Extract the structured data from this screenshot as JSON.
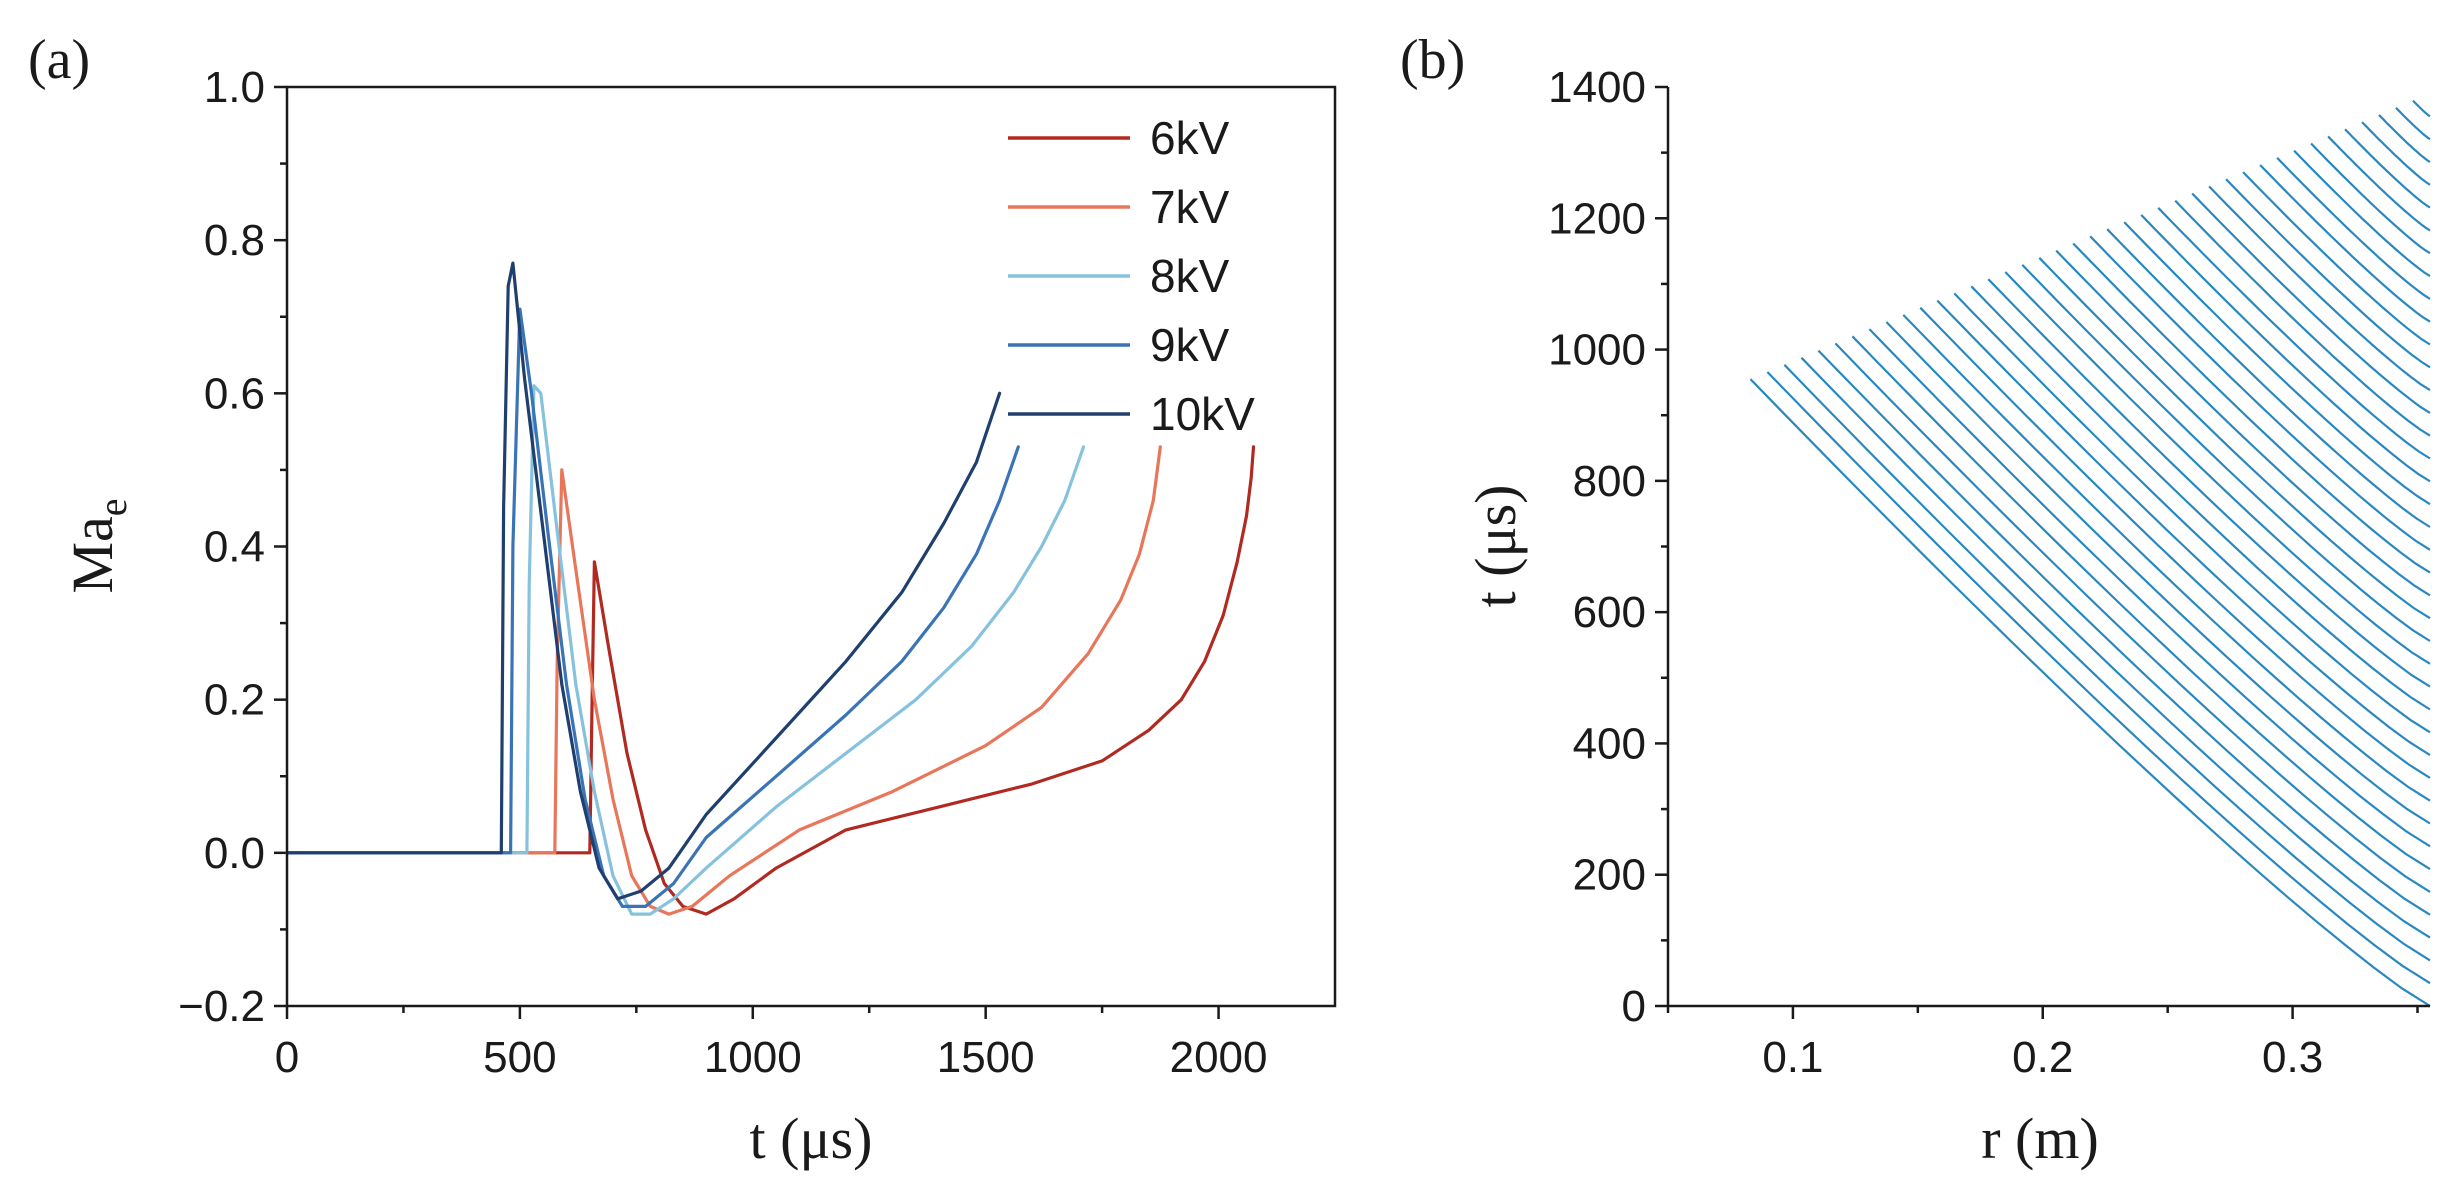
{
  "chart_data": [
    {
      "type": "line",
      "panel_label": "(a)",
      "title": "",
      "xlabel": "t (μs)",
      "ylabel_main": "Ma",
      "ylabel_sub": "e",
      "xlim": [
        0,
        2250
      ],
      "ylim": [
        -0.2,
        1.0
      ],
      "xticks": [
        0,
        500,
        1000,
        1500,
        2000
      ],
      "xtick_labels": [
        "0",
        "500",
        "1000",
        "1500",
        "2000"
      ],
      "yticks": [
        -0.2,
        0.0,
        0.2,
        0.4,
        0.6,
        0.8,
        1.0
      ],
      "ytick_labels": [
        "−0.2",
        "0.0",
        "0.2",
        "0.4",
        "0.6",
        "0.8",
        "1.0"
      ],
      "legend_position": "top-right",
      "series": [
        {
          "name": "6kV",
          "color": "#b02a22",
          "x": [
            0,
            650,
            655,
            660,
            690,
            730,
            770,
            810,
            850,
            900,
            960,
            1050,
            1200,
            1400,
            1600,
            1750,
            1850,
            1920,
            1970,
            2010,
            2040,
            2060,
            2070,
            2075
          ],
          "y": [
            0,
            0,
            0.2,
            0.38,
            0.27,
            0.13,
            0.03,
            -0.04,
            -0.07,
            -0.08,
            -0.06,
            -0.02,
            0.03,
            0.06,
            0.09,
            0.12,
            0.16,
            0.2,
            0.25,
            0.31,
            0.38,
            0.44,
            0.49,
            0.53
          ]
        },
        {
          "name": "7kV",
          "color": "#e8765a",
          "x": [
            0,
            575,
            580,
            590,
            620,
            660,
            700,
            740,
            780,
            820,
            870,
            950,
            1100,
            1300,
            1500,
            1620,
            1720,
            1790,
            1830,
            1860,
            1875
          ],
          "y": [
            0,
            0,
            0.25,
            0.5,
            0.37,
            0.2,
            0.07,
            -0.03,
            -0.07,
            -0.08,
            -0.07,
            -0.03,
            0.03,
            0.08,
            0.14,
            0.19,
            0.26,
            0.33,
            0.39,
            0.46,
            0.53
          ]
        },
        {
          "name": "8kV",
          "color": "#86c2de",
          "x": [
            0,
            515,
            520,
            530,
            545,
            580,
            620,
            660,
            700,
            740,
            780,
            830,
            900,
            1050,
            1200,
            1350,
            1470,
            1560,
            1620,
            1670,
            1710
          ],
          "y": [
            0,
            0,
            0.35,
            0.61,
            0.6,
            0.42,
            0.22,
            0.08,
            -0.03,
            -0.08,
            -0.08,
            -0.06,
            -0.02,
            0.06,
            0.13,
            0.2,
            0.27,
            0.34,
            0.4,
            0.46,
            0.53
          ]
        },
        {
          "name": "9kV",
          "color": "#3a74b6",
          "x": [
            0,
            480,
            485,
            500,
            525,
            560,
            600,
            640,
            680,
            720,
            770,
            830,
            900,
            1050,
            1200,
            1320,
            1410,
            1480,
            1530,
            1570
          ],
          "y": [
            0,
            0,
            0.4,
            0.71,
            0.6,
            0.42,
            0.22,
            0.07,
            -0.03,
            -0.07,
            -0.07,
            -0.04,
            0.02,
            0.1,
            0.18,
            0.25,
            0.32,
            0.39,
            0.46,
            0.53
          ]
        },
        {
          "name": "10kV",
          "color": "#1f3f6e",
          "x": [
            0,
            460,
            465,
            475,
            485,
            510,
            550,
            590,
            630,
            670,
            710,
            760,
            820,
            900,
            1050,
            1200,
            1320,
            1410,
            1480,
            1530
          ],
          "y": [
            0,
            0,
            0.45,
            0.74,
            0.77,
            0.62,
            0.42,
            0.22,
            0.08,
            -0.02,
            -0.06,
            -0.05,
            -0.02,
            0.05,
            0.15,
            0.25,
            0.34,
            0.43,
            0.51,
            0.6
          ]
        }
      ]
    },
    {
      "type": "line",
      "panel_label": "(b)",
      "title": "",
      "xlabel": "r (m)",
      "ylabel": "t (μs)",
      "xlim": [
        0.05,
        0.355
      ],
      "ylim": [
        0,
        1400
      ],
      "xticks": [
        0.1,
        0.2,
        0.3
      ],
      "xtick_labels": [
        "0.1",
        "0.2",
        "0.3"
      ],
      "yticks": [
        0,
        200,
        400,
        600,
        800,
        1000,
        1200,
        1400
      ],
      "ytick_labels": [
        "0",
        "200",
        "400",
        "600",
        "800",
        "1000",
        "1200",
        "1400"
      ],
      "line_color": "#2a88c0",
      "characteristics": {
        "count": 41,
        "start_r": 0.355,
        "start_t_first": 0,
        "start_t_last": 1390,
        "end_r_first": 0.083,
        "end_t_first": 955,
        "end_r_last": 0.355,
        "end_t_last": 1390
      }
    }
  ]
}
